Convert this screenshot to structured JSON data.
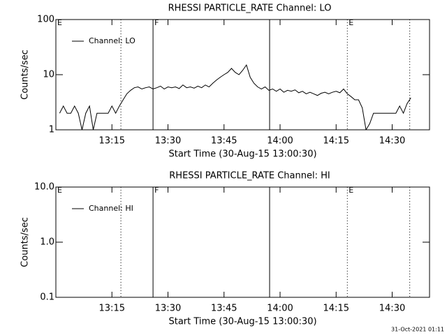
{
  "chart_data": [
    {
      "type": "line",
      "title": "RHESSI PARTICLE_RATE Channel: LO",
      "y_label": "Counts/sec",
      "x_label": "Start Time (30-Aug-15 13:00:30)",
      "log_y": true,
      "legend": "upper left",
      "xlim": [
        0,
        100
      ],
      "ylim": [
        1,
        100
      ],
      "xticks": [
        {
          "value": 15,
          "label": "13:15"
        },
        {
          "value": 30,
          "label": "13:30"
        },
        {
          "value": 45,
          "label": "13:45"
        },
        {
          "value": 60,
          "label": "14:00"
        },
        {
          "value": 75,
          "label": "14:15"
        },
        {
          "value": 90,
          "label": "14:30"
        }
      ],
      "yticks": [
        1,
        10,
        100
      ],
      "markers": [
        {
          "x": 0,
          "style": "dotted",
          "label": "E"
        },
        {
          "x": 17.4,
          "style": "dotted"
        },
        {
          "x": 26,
          "style": "solid",
          "label": "F"
        },
        {
          "x": 57.2,
          "style": "solid"
        },
        {
          "x": 78,
          "style": "dotted",
          "label": "E"
        },
        {
          "x": 94.7,
          "style": "dotted"
        }
      ],
      "x": [
        1,
        2,
        3,
        4,
        5,
        6,
        7,
        8,
        9,
        10,
        11,
        12,
        13,
        14,
        15,
        16,
        17,
        18,
        19,
        20,
        21,
        22,
        23,
        24,
        25,
        26,
        27,
        28,
        29,
        30,
        31,
        32,
        33,
        34,
        35,
        36,
        37,
        38,
        39,
        40,
        41,
        42,
        43,
        44,
        45,
        46,
        47,
        48,
        49,
        50,
        51,
        52,
        53,
        54,
        55,
        56,
        57,
        58,
        59,
        60,
        61,
        62,
        63,
        64,
        65,
        66,
        67,
        68,
        69,
        70,
        71,
        72,
        73,
        74,
        75,
        76,
        77,
        78,
        79,
        80,
        81,
        82,
        83,
        84,
        85,
        86,
        87,
        88,
        89,
        90,
        91,
        92,
        93,
        94,
        95
      ],
      "series": [
        {
          "name": "Channel: LO",
          "color": "#000000",
          "values": [
            2,
            2.7,
            2,
            2,
            2.7,
            2,
            1,
            2,
            2.7,
            1,
            2,
            2,
            2,
            2,
            2.7,
            2,
            2.7,
            3.5,
            4.5,
            5.2,
            5.8,
            6,
            5.5,
            5.8,
            6,
            5.5,
            5.8,
            6.2,
            5.5,
            6,
            5.8,
            6,
            5.6,
            6.5,
            5.8,
            6,
            5.7,
            6.2,
            5.8,
            6.5,
            6,
            7,
            8,
            9,
            10,
            11,
            13,
            11,
            10,
            12,
            15,
            9,
            7,
            6,
            5.5,
            6,
            5.2,
            5.5,
            5,
            5.5,
            4.8,
            5.2,
            5,
            5.3,
            4.7,
            5,
            4.5,
            4.8,
            4.5,
            4.2,
            4.6,
            4.8,
            4.5,
            4.8,
            5,
            4.7,
            5.5,
            4.5,
            4,
            3.5,
            3.5,
            2.5,
            1,
            1.3,
            2,
            2,
            2,
            2,
            2,
            2,
            2,
            2.7,
            2,
            3,
            3.8
          ]
        }
      ]
    },
    {
      "type": "line",
      "title": "RHESSI PARTICLE_RATE Channel: HI",
      "y_label": "Counts/sec",
      "x_label": "Start Time (30-Aug-15 13:00:30)",
      "log_y": true,
      "legend": "upper left",
      "xlim": [
        0,
        100
      ],
      "ylim": [
        0.1,
        10
      ],
      "xticks": [
        {
          "value": 15,
          "label": "13:15"
        },
        {
          "value": 30,
          "label": "13:30"
        },
        {
          "value": 45,
          "label": "13:45"
        },
        {
          "value": 60,
          "label": "14:00"
        },
        {
          "value": 75,
          "label": "14:15"
        },
        {
          "value": 90,
          "label": "14:30"
        }
      ],
      "yticks": [
        {
          "value": 0.1,
          "label": "0.1"
        },
        {
          "value": 1,
          "label": "1.0"
        },
        {
          "value": 10,
          "label": "10.0"
        }
      ],
      "markers": [
        {
          "x": 0,
          "style": "dotted",
          "label": "E"
        },
        {
          "x": 17.4,
          "style": "dotted"
        },
        {
          "x": 26,
          "style": "solid",
          "label": "F"
        },
        {
          "x": 57.2,
          "style": "solid"
        },
        {
          "x": 78,
          "style": "dotted",
          "label": "E"
        },
        {
          "x": 94.7,
          "style": "dotted"
        }
      ],
      "x": [],
      "series": [
        {
          "name": "Channel: HI",
          "color": "#000000",
          "values": []
        }
      ]
    }
  ],
  "footer": "31-Oct-2021 01:11"
}
